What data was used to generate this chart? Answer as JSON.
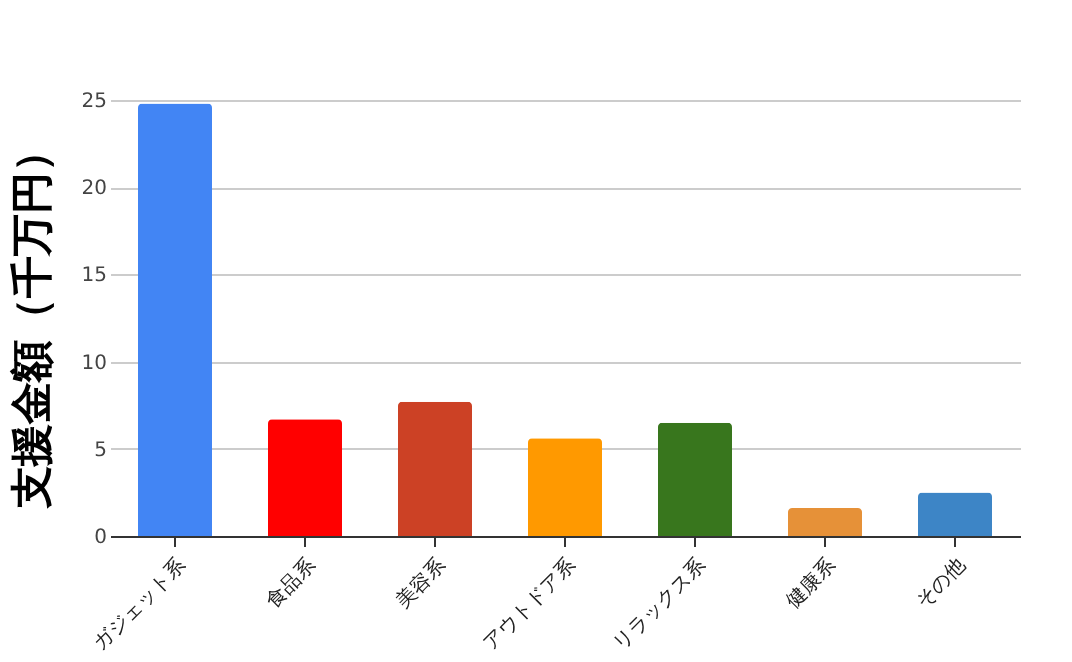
{
  "chart_data": {
    "type": "bar",
    "ylabel": "支援金額（千万円）",
    "categories": [
      "ガジェット系",
      "食品系",
      "美容系",
      "アウトドア系",
      "リラックス系",
      "健康系",
      "その他"
    ],
    "values": [
      24.8,
      6.7,
      7.7,
      5.6,
      6.5,
      1.6,
      2.5
    ],
    "colors": [
      "#4285f4",
      "#ff0000",
      "#cc4125",
      "#ff9900",
      "#38761d",
      "#e69138",
      "#3d85c6"
    ],
    "ylim": [
      0,
      25
    ],
    "yticks": [
      0,
      5,
      10,
      15,
      20,
      25
    ],
    "grid": "y"
  }
}
